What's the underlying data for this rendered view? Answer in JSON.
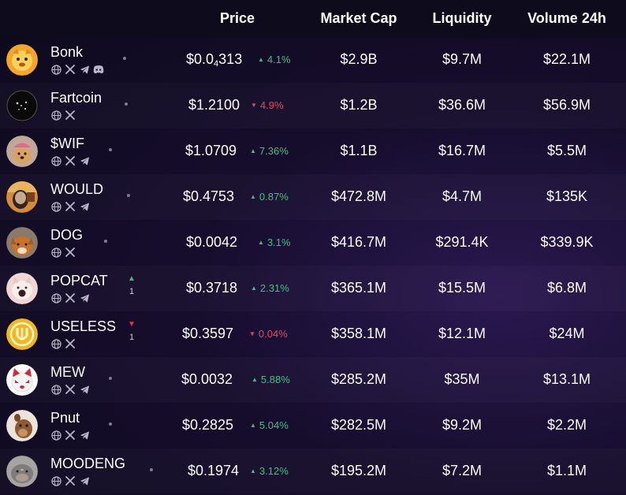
{
  "headers": {
    "price": "Price",
    "market_cap": "Market Cap",
    "liquidity": "Liquidity",
    "volume": "Volume 24h"
  },
  "icons": {
    "website": "globe-icon",
    "x": "x-twitter-icon",
    "telegram": "telegram-icon",
    "discord": "discord-icon"
  },
  "colors": {
    "up": "#34c77b",
    "down": "#f0435a"
  },
  "tokens": [
    {
      "name": "Bonk",
      "links": [
        "website",
        "x",
        "telegram",
        "discord"
      ],
      "price_prefix": "$0.0",
      "price_sub": "4",
      "price_suffix": "313",
      "change": "4.1%",
      "change_dir": "up",
      "market_cap": "$2.9B",
      "liquidity": "$9.7M",
      "volume": "$22.1M"
    },
    {
      "name": "Fartcoin",
      "links": [
        "website",
        "x"
      ],
      "price": "$1.2100",
      "change": "4.9%",
      "change_dir": "down",
      "market_cap": "$1.2B",
      "liquidity": "$36.6M",
      "volume": "$56.9M"
    },
    {
      "name": "$WIF",
      "links": [
        "website",
        "x",
        "telegram"
      ],
      "price": "$1.0709",
      "change": "7.36%",
      "change_dir": "up",
      "market_cap": "$1.1B",
      "liquidity": "$16.7M",
      "volume": "$5.5M"
    },
    {
      "name": "WOULD",
      "links": [
        "website",
        "x",
        "telegram"
      ],
      "price": "$0.4753",
      "change": "0.87%",
      "change_dir": "up",
      "market_cap": "$472.8M",
      "liquidity": "$4.7M",
      "volume": "$135K"
    },
    {
      "name": "DOG",
      "links": [
        "website",
        "x"
      ],
      "price": "$0.0042",
      "change": "3.1%",
      "change_dir": "up",
      "market_cap": "$416.7M",
      "liquidity": "$291.4K",
      "volume": "$339.9K"
    },
    {
      "name": "POPCAT",
      "links": [
        "website",
        "x",
        "telegram"
      ],
      "rank_change": "1",
      "rank_dir": "up",
      "price": "$0.3718",
      "change": "2.31%",
      "change_dir": "up",
      "market_cap": "$365.1M",
      "liquidity": "$15.5M",
      "volume": "$6.8M"
    },
    {
      "name": "USELESS",
      "links": [
        "website",
        "x"
      ],
      "rank_change": "1",
      "rank_dir": "down",
      "price": "$0.3597",
      "change": "0.04%",
      "change_dir": "down",
      "market_cap": "$358.1M",
      "liquidity": "$12.1M",
      "volume": "$24M"
    },
    {
      "name": "MEW",
      "links": [
        "website",
        "x",
        "telegram"
      ],
      "price": "$0.0032",
      "change": "5.88%",
      "change_dir": "up",
      "market_cap": "$285.2M",
      "liquidity": "$35M",
      "volume": "$13.1M"
    },
    {
      "name": "Pnut",
      "links": [
        "website",
        "x",
        "telegram"
      ],
      "price": "$0.2825",
      "change": "5.04%",
      "change_dir": "up",
      "market_cap": "$282.5M",
      "liquidity": "$9.2M",
      "volume": "$2.2M"
    },
    {
      "name": "MOODENG",
      "links": [
        "website",
        "x",
        "telegram"
      ],
      "price": "$0.1974",
      "change": "3.12%",
      "change_dir": "up",
      "market_cap": "$195.2M",
      "liquidity": "$7.2M",
      "volume": "$1.1M"
    }
  ]
}
